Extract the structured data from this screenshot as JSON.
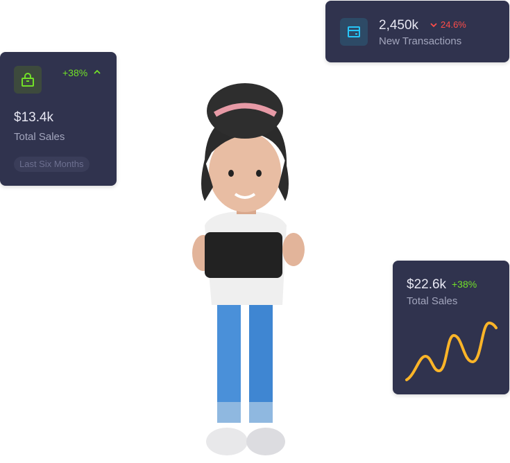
{
  "colors": {
    "card_bg": "#30334e",
    "success": "#72e128",
    "error": "#ff4d49",
    "info": "#26c6f9",
    "warning": "#fdb528"
  },
  "total_sales_card": {
    "icon": "shopping-bag-icon",
    "change": "+38%",
    "trend_icon": "chevron-up-icon",
    "value": "$13.4k",
    "label": "Total Sales",
    "chip": "Last Six Months"
  },
  "transactions_card": {
    "icon": "credit-card-icon",
    "value": "2,450k",
    "trend_icon": "chevron-down-icon",
    "change": "24.6%",
    "label": "New Transactions"
  },
  "sales_chart_card": {
    "value": "$22.6k",
    "change": "+38%",
    "label": "Total Sales"
  }
}
